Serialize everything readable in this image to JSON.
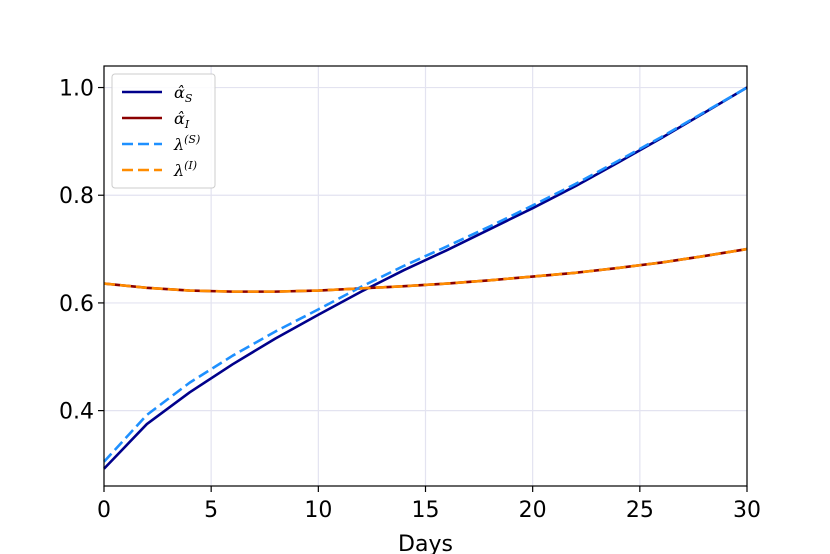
{
  "chart_data": {
    "type": "line",
    "title": "",
    "xlabel": "Days",
    "ylabel": "",
    "xlim": [
      0,
      30
    ],
    "ylim": [
      0.26,
      1.04
    ],
    "xticks": [
      0,
      5,
      10,
      15,
      20,
      25,
      30
    ],
    "yticks": [
      0.4,
      0.6,
      0.8,
      1.0
    ],
    "xtick_labels": [
      "0",
      "5",
      "10",
      "15",
      "20",
      "25",
      "30"
    ],
    "ytick_labels": [
      "0.4",
      "0.6",
      "0.8",
      "1.0"
    ],
    "grid": true,
    "legend_placement": "top-left",
    "series": [
      {
        "name": "α̂_S",
        "legend_main": "α̂",
        "legend_sup": "",
        "legend_sub": "S",
        "color": "#00008b",
        "dash": "solid",
        "x": [
          0,
          2,
          4,
          6,
          8,
          10,
          12,
          14,
          16,
          18,
          20,
          22,
          24,
          26,
          28,
          30
        ],
        "y": [
          0.292,
          0.375,
          0.434,
          0.486,
          0.534,
          0.578,
          0.621,
          0.661,
          0.698,
          0.737,
          0.776,
          0.817,
          0.861,
          0.906,
          0.953,
          1.0
        ]
      },
      {
        "name": "α̂_I",
        "legend_main": "α̂",
        "legend_sup": "",
        "legend_sub": "I",
        "color": "#8b0000",
        "dash": "solid",
        "x": [
          0,
          2,
          4,
          6,
          8,
          10,
          12,
          14,
          16,
          18,
          20,
          22,
          24,
          26,
          28,
          30
        ],
        "y": [
          0.636,
          0.628,
          0.623,
          0.621,
          0.621,
          0.623,
          0.627,
          0.631,
          0.636,
          0.642,
          0.649,
          0.656,
          0.665,
          0.675,
          0.687,
          0.7
        ]
      },
      {
        "name": "λ^(S)",
        "legend_main": "λ",
        "legend_sup": "(S)",
        "legend_sub": "",
        "color": "#1e90ff",
        "dash": "dashed",
        "x": [
          0,
          2,
          4,
          6,
          8,
          10,
          12,
          14,
          16,
          18,
          20,
          22,
          24,
          26,
          28,
          30
        ],
        "y": [
          0.305,
          0.392,
          0.452,
          0.502,
          0.547,
          0.588,
          0.63,
          0.669,
          0.705,
          0.742,
          0.781,
          0.821,
          0.864,
          0.908,
          0.954,
          1.0
        ]
      },
      {
        "name": "λ^(I)",
        "legend_main": "λ",
        "legend_sup": "(I)",
        "legend_sub": "",
        "color": "#ff8c00",
        "dash": "dashed",
        "x": [
          0,
          2,
          4,
          6,
          8,
          10,
          12,
          14,
          16,
          18,
          20,
          22,
          24,
          26,
          28,
          30
        ],
        "y": [
          0.636,
          0.628,
          0.623,
          0.621,
          0.621,
          0.623,
          0.627,
          0.631,
          0.636,
          0.642,
          0.649,
          0.656,
          0.665,
          0.675,
          0.687,
          0.7
        ]
      }
    ]
  }
}
